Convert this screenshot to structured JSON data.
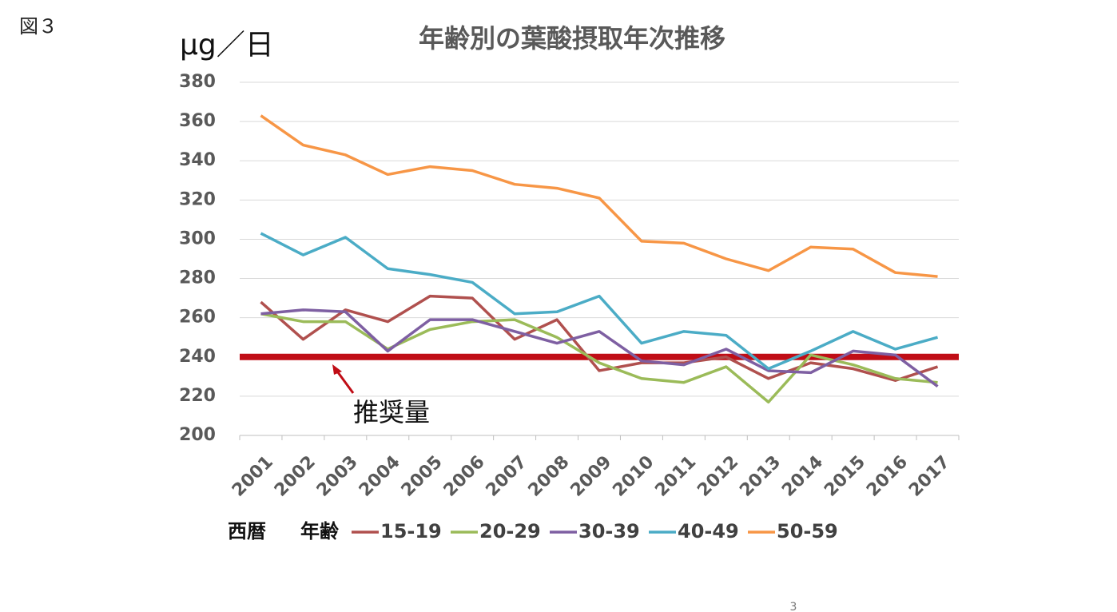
{
  "figure_label": "図３",
  "page_number": "3",
  "chart_data": {
    "type": "line",
    "title": "年齢別の葉酸摂取年次推移",
    "y_axis_label": "μg／日",
    "x_axis_label": "西暦",
    "legend_title": "年齢",
    "categories": [
      "2001",
      "2002",
      "2003",
      "2004",
      "2005",
      "2006",
      "2007",
      "2008",
      "2009",
      "2010",
      "2011",
      "2012",
      "2013",
      "2014",
      "2015",
      "2016",
      "2017"
    ],
    "series": [
      {
        "name": "15-19",
        "color": "#b0504e",
        "values": [
          268,
          249,
          264,
          258,
          271,
          270,
          249,
          259,
          233,
          237,
          237,
          240,
          229,
          237,
          234,
          228,
          235
        ]
      },
      {
        "name": "20-29",
        "color": "#9bbb59",
        "values": [
          262,
          258,
          258,
          244,
          254,
          258,
          259,
          250,
          237,
          229,
          227,
          235,
          217,
          241,
          236,
          229,
          227
        ]
      },
      {
        "name": "30-39",
        "color": "#7e5fa2",
        "values": [
          262,
          264,
          263,
          243,
          259,
          259,
          253,
          247,
          253,
          238,
          236,
          244,
          233,
          232,
          243,
          241,
          225
        ]
      },
      {
        "name": "40-49",
        "color": "#4bacc6",
        "values": [
          303,
          292,
          301,
          285,
          282,
          278,
          262,
          263,
          271,
          247,
          253,
          251,
          234,
          243,
          253,
          244,
          250
        ]
      },
      {
        "name": "50-59",
        "color": "#f79646",
        "values": [
          363,
          348,
          343,
          333,
          337,
          335,
          328,
          326,
          321,
          299,
          298,
          290,
          284,
          296,
          295,
          283,
          281
        ]
      }
    ],
    "reference_line": {
      "value": 240,
      "label": "推奨量",
      "color": "#c00d16"
    },
    "ylim": [
      200,
      380
    ],
    "yticks": [
      200,
      220,
      240,
      260,
      280,
      300,
      320,
      340,
      360,
      380
    ],
    "grid": true
  }
}
